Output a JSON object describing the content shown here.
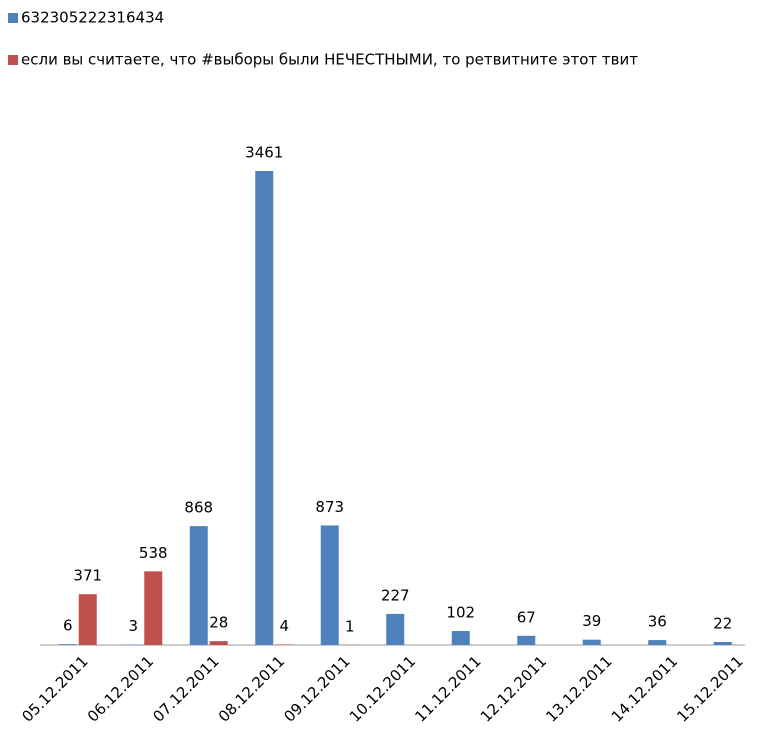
{
  "chart_data": {
    "type": "bar",
    "categories": [
      "05.12.2011",
      "06.12.2011",
      "07.12.2011",
      "08.12.2011",
      "09.12.2011",
      "10.12.2011",
      "11.12.2011",
      "12.12.2011",
      "13.12.2011",
      "14.12.2011",
      "15.12.2011"
    ],
    "series": [
      {
        "name": "632305222316434",
        "color": "#4f81bd",
        "values": [
          6,
          3,
          868,
          3461,
          873,
          227,
          102,
          67,
          39,
          36,
          22
        ]
      },
      {
        "name": "если вы считаете, что #выборы были НЕЧЕСТНЫМИ,  то ретвитните этот твит",
        "color": "#c0504d",
        "values": [
          371,
          538,
          28,
          4,
          1,
          null,
          null,
          null,
          null,
          null,
          null
        ]
      }
    ]
  }
}
